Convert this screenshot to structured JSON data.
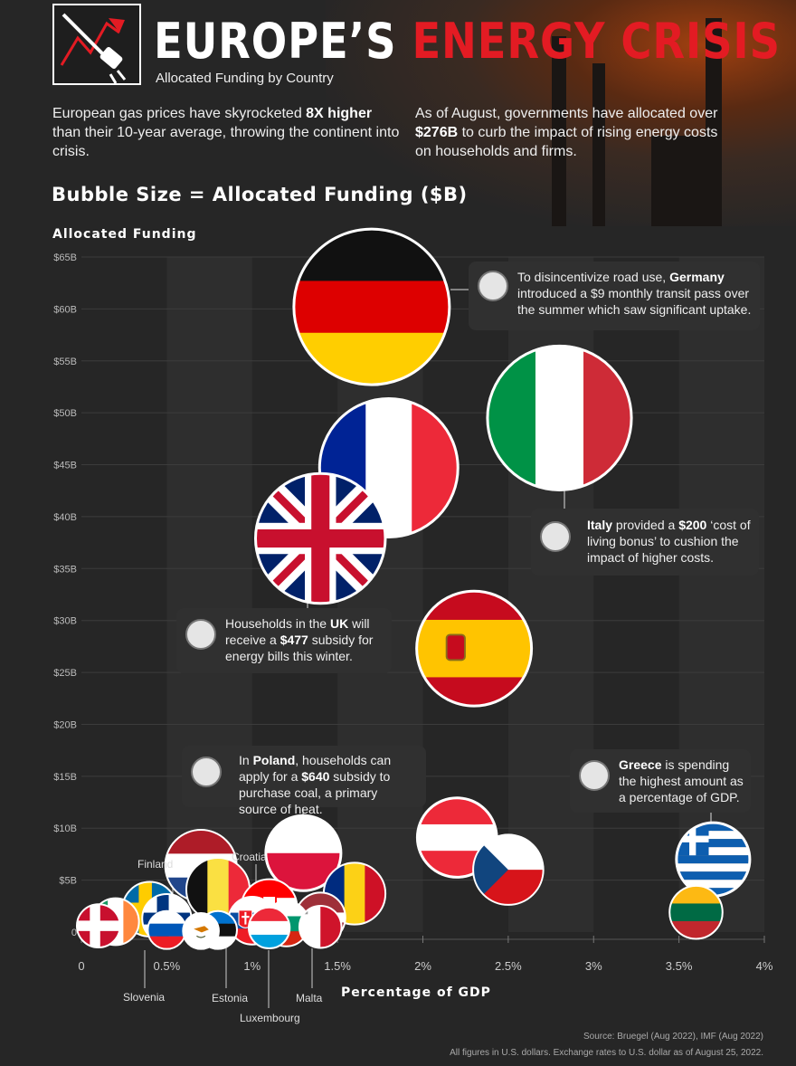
{
  "header": {
    "title_part1": "EUROPE’S",
    "title_part2": "ENERGY CRISIS",
    "subtitle": "Allocated Funding by Country"
  },
  "intro": {
    "left": [
      "European gas prices have skyrocketed ",
      "8X higher",
      " than their 10-year average, throwing the continent into crisis."
    ],
    "right": [
      "As of August, governments have allocated over ",
      "$276B",
      " to curb the impact of rising energy costs on households and firms."
    ]
  },
  "bubble_size_label": "Bubble Size = Allocated Funding ($B)",
  "callouts": {
    "germany": [
      "To disincentivize road use, ",
      "Germany",
      " introduced a $9 monthly transit pass over the summer which saw significant uptake."
    ],
    "italy": [
      "Italy",
      " provided a ",
      "$200",
      " ‘cost of living bonus’ to cushion the impact of higher costs."
    ],
    "uk": [
      "Households in the ",
      "UK",
      " will receive a ",
      "$477",
      " subsidy for energy bills this winter."
    ],
    "poland": [
      "In ",
      "Poland",
      ", households can apply for a ",
      "$640",
      " subsidy to purchase coal, a primary source of heat."
    ],
    "greece": [
      "Greece",
      " is spending the highest amount as a percentage of GDP."
    ]
  },
  "country_labels": {
    "finland": "Finland",
    "croatia": "Croatia",
    "slovenia": "Slovenia",
    "estonia": "Estonia",
    "luxembourg": "Luxembourg",
    "malta": "Malta"
  },
  "source": "Source: Bruegel (Aug 2022), IMF (Aug 2022)",
  "note": "All figures in U.S. dollars. Exchange rates to U.S. dollar as of August 25, 2022.",
  "colors": {
    "accent_red": "#e31b23",
    "background": "#262626"
  },
  "chart_data": {
    "type": "scatter",
    "xlabel": "Percentage of GDP",
    "ylabel": "Allocated Funding",
    "size_label": "Allocated Funding ($B)",
    "xlim": [
      0,
      4
    ],
    "ylim": [
      0,
      65
    ],
    "x_ticks": [
      "0",
      "0.5%",
      "1%",
      "1.5%",
      "2%",
      "2.5%",
      "3%",
      "3.5%",
      "4%"
    ],
    "y_ticks": [
      "0",
      "$5B",
      "$10B",
      "$15B",
      "$20B",
      "$25B",
      "$30B",
      "$35B",
      "$40B",
      "$45B",
      "$50B",
      "$55B",
      "$60B",
      "$65B"
    ],
    "points": [
      {
        "country": "Germany",
        "flag": "germany",
        "x": 1.7,
        "y": 60.2
      },
      {
        "country": "Italy",
        "flag": "italy",
        "x": 2.8,
        "y": 49.5
      },
      {
        "country": "France",
        "flag": "france",
        "x": 1.8,
        "y": 44.7
      },
      {
        "country": "United Kingdom",
        "flag": "uk",
        "x": 1.4,
        "y": 37.9
      },
      {
        "country": "Spain",
        "flag": "spain",
        "x": 2.3,
        "y": 27.3
      },
      {
        "country": "Poland",
        "flag": "poland",
        "x": 1.3,
        "y": 7.6
      },
      {
        "country": "Austria",
        "flag": "austria",
        "x": 2.2,
        "y": 9.1
      },
      {
        "country": "Czech Republic",
        "flag": "czech",
        "x": 2.5,
        "y": 6.0
      },
      {
        "country": "Greece",
        "flag": "greece",
        "x": 3.7,
        "y": 7.0
      },
      {
        "country": "Lithuania",
        "flag": "lithuania",
        "x": 3.6,
        "y": 1.9
      },
      {
        "country": "Netherlands",
        "flag": "netherlands",
        "x": 0.7,
        "y": 6.4
      },
      {
        "country": "Belgium",
        "flag": "belgium",
        "x": 0.8,
        "y": 4.1
      },
      {
        "country": "Romania",
        "flag": "romania",
        "x": 1.6,
        "y": 3.7
      },
      {
        "country": "Croatia",
        "flag": "croatia",
        "x": 1.1,
        "y": 2.4
      },
      {
        "country": "Sweden",
        "flag": "sweden",
        "x": 0.4,
        "y": 2.2
      },
      {
        "country": "Finland",
        "flag": "finland",
        "x": 0.5,
        "y": 1.3
      },
      {
        "country": "Denmark",
        "flag": "denmark",
        "x": 0.1,
        "y": 0.6
      },
      {
        "country": "Ireland",
        "flag": "ireland",
        "x": 0.2,
        "y": 1.0
      },
      {
        "country": "Slovenia",
        "flag": "slovenia",
        "x": 0.5,
        "y": 0.2
      },
      {
        "country": "Cyprus",
        "flag": "cyprus",
        "x": 0.7,
        "y": 0.1
      },
      {
        "country": "Estonia",
        "flag": "estonia",
        "x": 0.8,
        "y": 0.2
      },
      {
        "country": "Luxembourg",
        "flag": "luxembourg",
        "x": 1.1,
        "y": 0.4
      },
      {
        "country": "Slovakia",
        "flag": "slovakia",
        "x": 1.0,
        "y": 1.1
      },
      {
        "country": "Bulgaria",
        "flag": "bulgaria",
        "x": 1.2,
        "y": 0.8
      },
      {
        "country": "Malta",
        "flag": "malta",
        "x": 1.4,
        "y": 0.5
      },
      {
        "country": "Latvia",
        "flag": "latvia",
        "x": 1.4,
        "y": 1.4
      }
    ]
  }
}
